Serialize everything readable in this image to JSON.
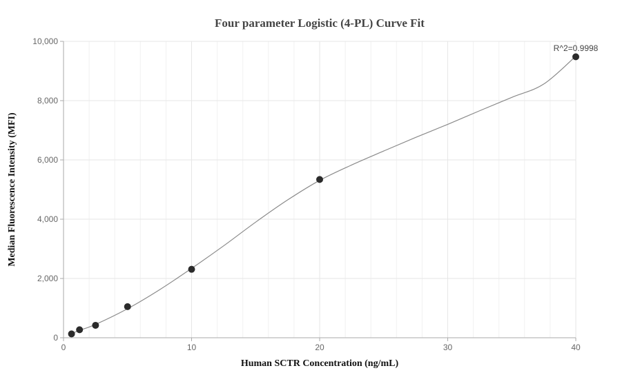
{
  "chart_data": {
    "type": "scatter",
    "title": "Four parameter Logistic (4-PL) Curve Fit",
    "xlabel": "Human SCTR Concentration (ng/mL)",
    "ylabel": "Median Fluorescence Intensity (MFI)",
    "xlim": [
      0,
      40
    ],
    "ylim": [
      0,
      10000
    ],
    "xticks": [
      "0",
      "10",
      "20",
      "30",
      "40"
    ],
    "yticks": [
      "0",
      "2,000",
      "4,000",
      "6,000",
      "8,000",
      "10,000"
    ],
    "grid": true,
    "annotation": "R^2=0.9998",
    "series": [
      {
        "values": [
          {
            "x": 0.625,
            "y": 130
          },
          {
            "x": 1.25,
            "y": 270
          },
          {
            "x": 2.5,
            "y": 420
          },
          {
            "x": 5,
            "y": 1050
          },
          {
            "x": 10,
            "y": 2310
          },
          {
            "x": 20,
            "y": 5340
          },
          {
            "x": 40,
            "y": 9480
          }
        ]
      }
    ],
    "fit_curve": {
      "x": [
        0.625,
        1.25,
        2.5,
        5,
        7.5,
        10,
        12.5,
        15,
        17.5,
        20,
        22.5,
        25,
        27.5,
        30,
        32.5,
        35,
        37.5,
        40
      ],
      "y": [
        140,
        250,
        450,
        980,
        1620,
        2340,
        3100,
        3900,
        4650,
        5310,
        5830,
        6300,
        6760,
        7200,
        7660,
        8110,
        8560,
        9500
      ]
    },
    "colors": {
      "marker": "#2b2b2b",
      "curve": "#8a8a8a",
      "grid": "#e6e6e6",
      "axis": "#aaaaaa"
    }
  }
}
